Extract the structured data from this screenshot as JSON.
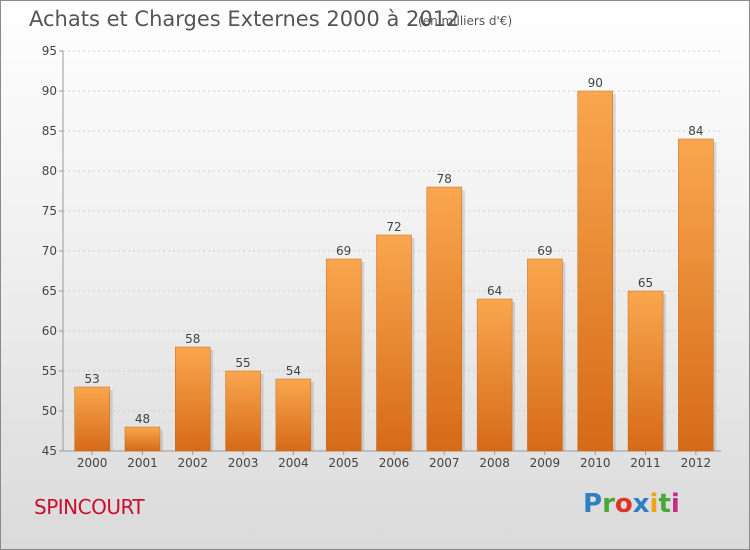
{
  "header": {
    "title": "Achats et Charges Externes 2000 à 2012",
    "subtitle": "(en milliers d'€)"
  },
  "footer": {
    "commune": "SPINCOURT",
    "logo": {
      "letters": [
        "P",
        "r",
        "o",
        "x",
        "i",
        "t",
        "i"
      ],
      "colors": [
        "#2f7fc1",
        "#4aa83a",
        "#e0342b",
        "#2f7fc1",
        "#f0a21a",
        "#4aa83a",
        "#c62b86"
      ]
    }
  },
  "colors": {
    "bar_top": "#f9a74e",
    "bar_bottom": "#d66a18",
    "axis": "#9a9a9a",
    "grid": "#cfcfcf",
    "text": "#444444"
  },
  "chart_data": {
    "type": "bar",
    "categories": [
      "2000",
      "2001",
      "2002",
      "2003",
      "2004",
      "2005",
      "2006",
      "2007",
      "2008",
      "2009",
      "2010",
      "2011",
      "2012"
    ],
    "values": [
      53,
      48,
      58,
      55,
      54,
      69,
      72,
      78,
      64,
      69,
      90,
      65,
      84
    ],
    "ylim": [
      45,
      95
    ],
    "yticks": [
      45,
      50,
      55,
      60,
      65,
      70,
      75,
      80,
      85,
      90,
      95
    ],
    "grid": true,
    "data_labels": true
  }
}
